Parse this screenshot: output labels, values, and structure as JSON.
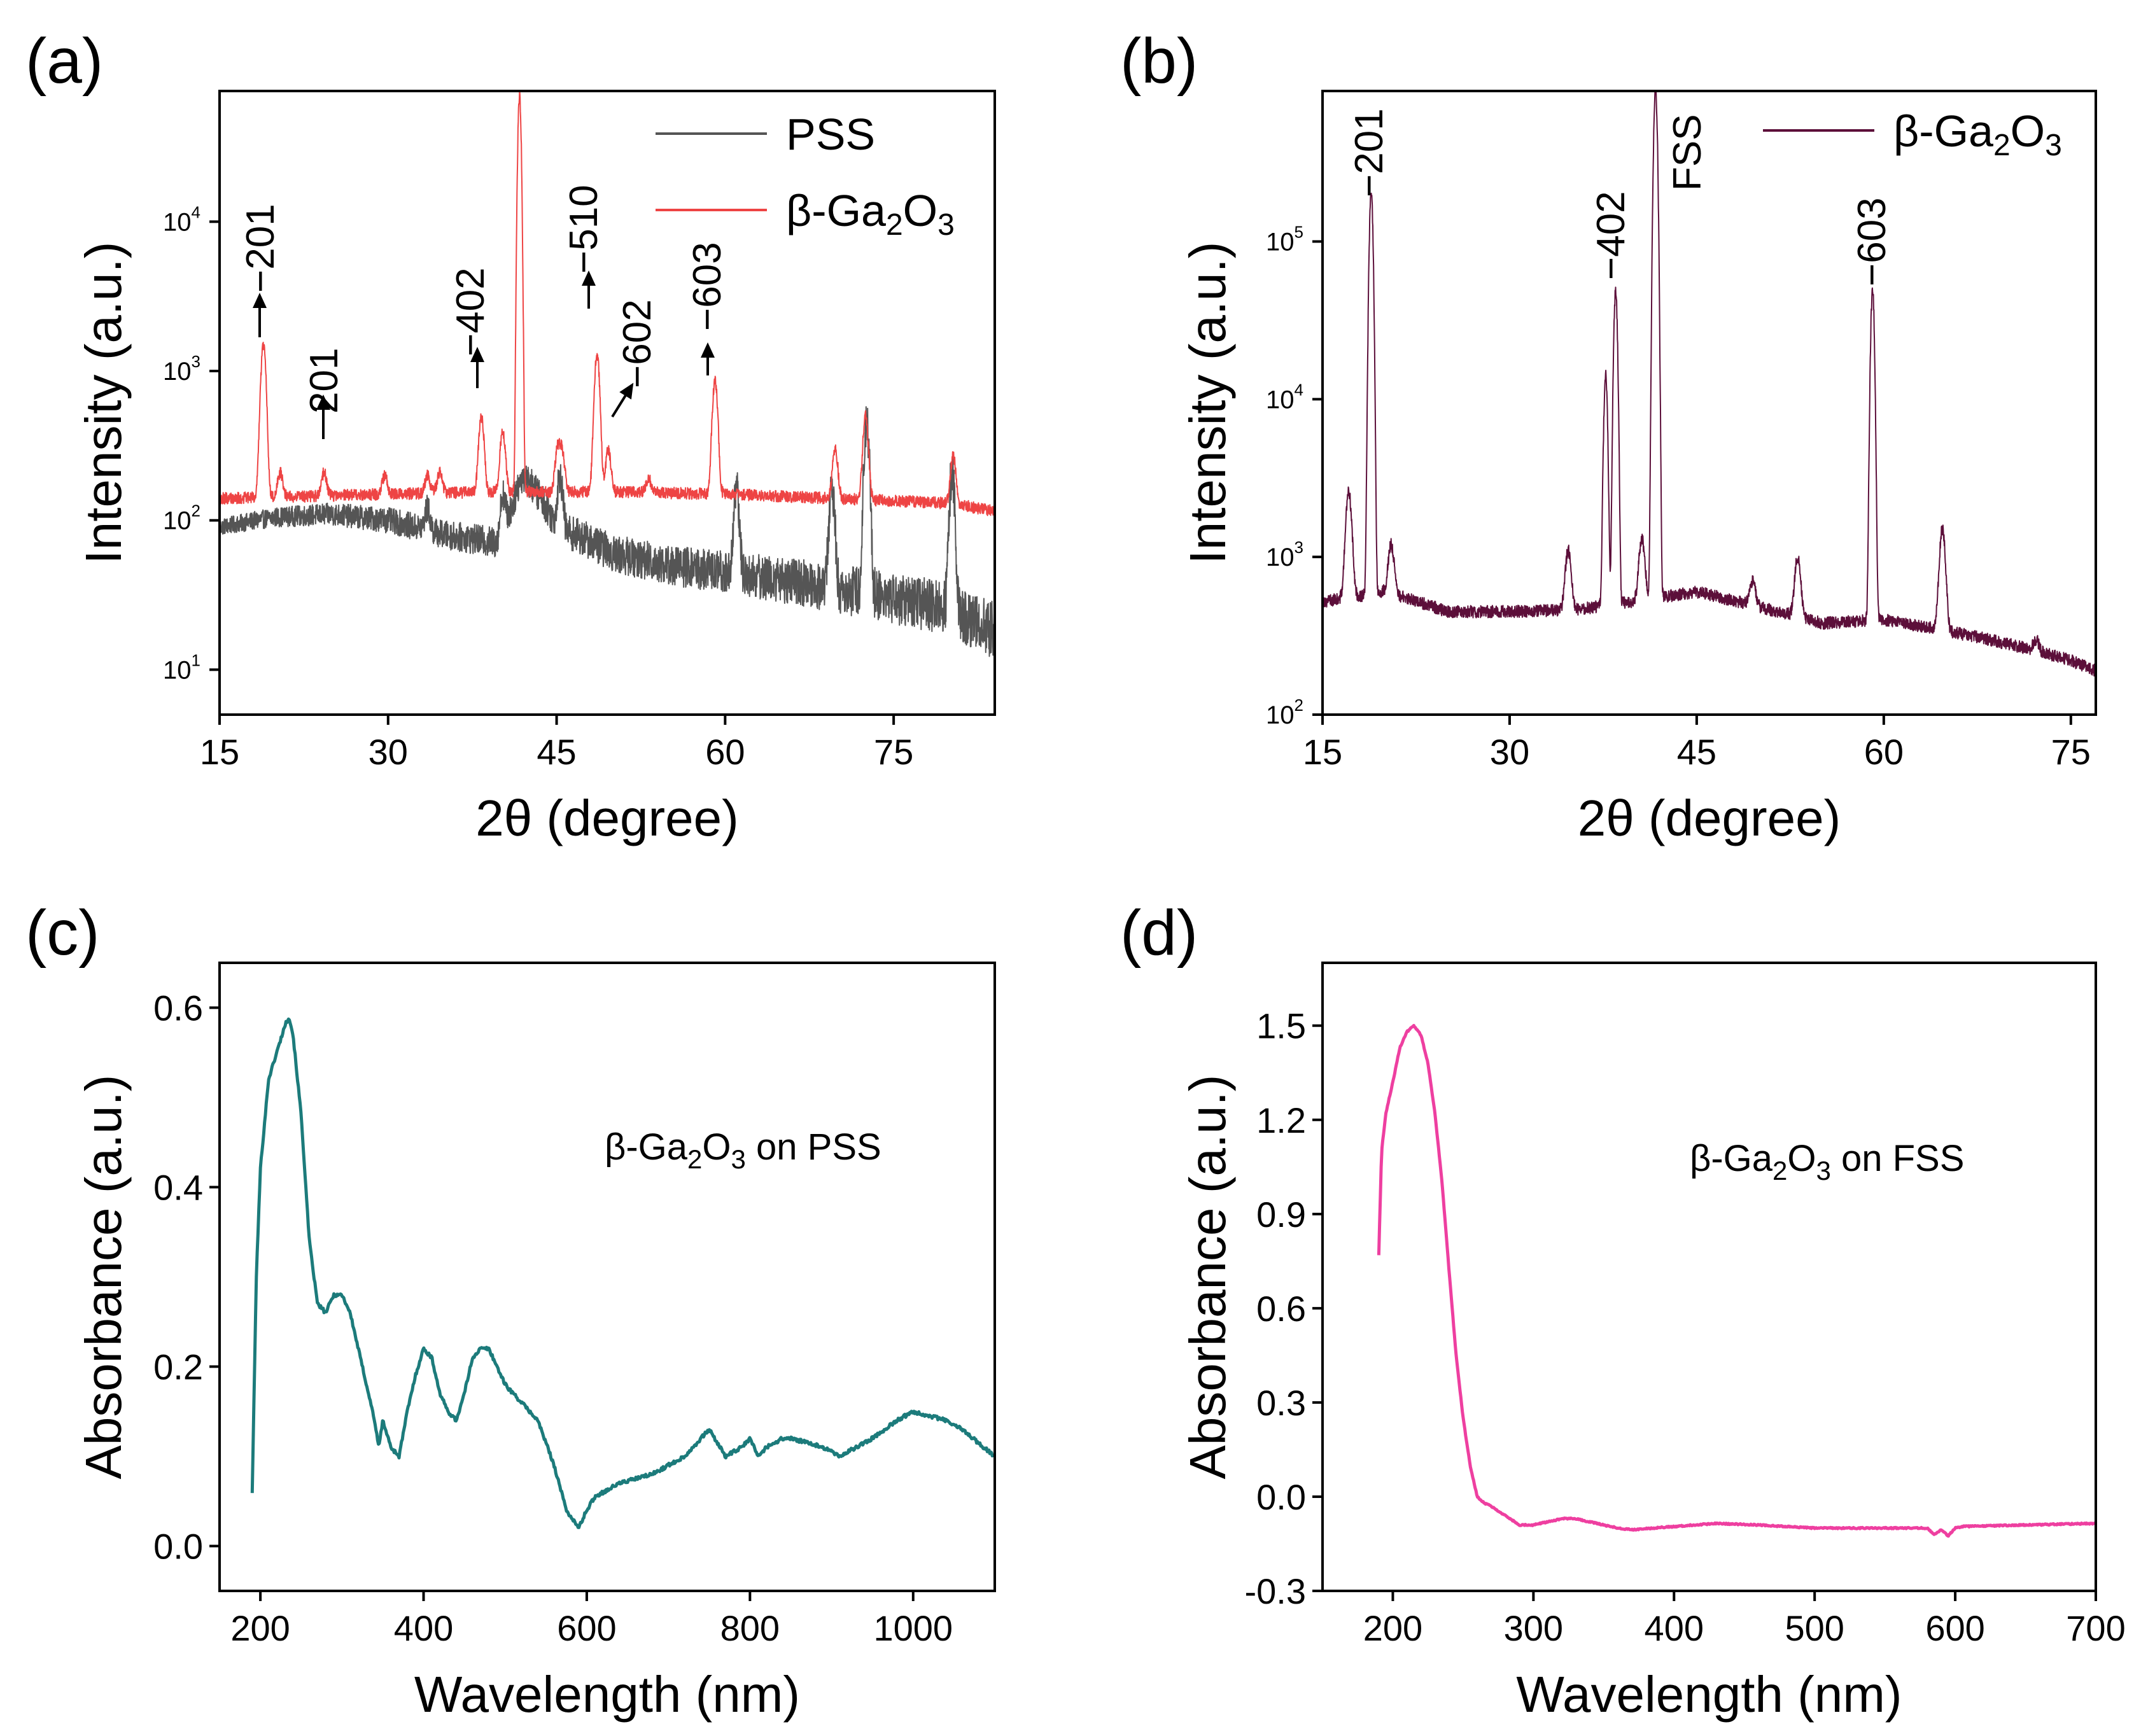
{
  "chart_data": [
    {
      "panel": "(a)",
      "type": "line",
      "title": "",
      "xlabel": "2θ (degree)",
      "ylabel": "Intensity (a.u.)",
      "xlim": [
        15,
        84
      ],
      "ylim": [
        5,
        75000
      ],
      "yscale": "log",
      "xticks": [
        15,
        30,
        45,
        60,
        75
      ],
      "yticks": [
        {
          "base": "10",
          "exp": "1",
          "value": 10
        },
        {
          "base": "10",
          "exp": "2",
          "value": 100
        },
        {
          "base": "10",
          "exp": "3",
          "value": 1000
        },
        {
          "base": "10",
          "exp": "4",
          "value": 10000
        }
      ],
      "legend": {
        "placement": "top-right"
      },
      "series": [
        {
          "name": "PSS",
          "color": "#555555",
          "peaks": [
            [
              33.5,
              120
            ],
            [
              40.2,
              150
            ],
            [
              41.7,
              180
            ],
            [
              45.3,
              200
            ],
            [
              61,
              160
            ],
            [
              69.5,
              170
            ],
            [
              72.6,
              450
            ],
            [
              80.2,
              210
            ]
          ],
          "background": [
            [
              15,
              90
            ],
            [
              20,
              105
            ],
            [
              25,
              110
            ],
            [
              30,
              100
            ],
            [
              35,
              80
            ],
            [
              40,
              70
            ],
            [
              41,
              120
            ],
            [
              42,
              200
            ],
            [
              45,
              90
            ],
            [
              50,
              60
            ],
            [
              55,
              50
            ],
            [
              60,
              45
            ],
            [
              65,
              40
            ],
            [
              70,
              35
            ],
            [
              75,
              30
            ],
            [
              80,
              25
            ],
            [
              84,
              18
            ]
          ]
        },
        {
          "name": "β-Ga",
          "sub1": "2",
          "mid": "O",
          "sub2": "3",
          "color": "#ee4444",
          "peaks": [
            [
              18.9,
              1500
            ],
            [
              20.4,
              210
            ],
            [
              24.3,
              210
            ],
            [
              29.7,
              200
            ],
            [
              33.5,
              200
            ],
            [
              34.6,
              210
            ],
            [
              38.3,
              500
            ],
            [
              40.2,
              400
            ],
            [
              41.7,
              70000
            ],
            [
              45.1,
              300
            ],
            [
              45.5,
              280
            ],
            [
              48.6,
              1300
            ],
            [
              49.6,
              300
            ],
            [
              53.2,
              190
            ],
            [
              59.1,
              850
            ],
            [
              69.8,
              300
            ],
            [
              72.5,
              500
            ],
            [
              80.3,
              270
            ]
          ],
          "background": [
            [
              15,
              140
            ],
            [
              30,
              150
            ],
            [
              40,
              155
            ],
            [
              50,
              155
            ],
            [
              60,
              150
            ],
            [
              70,
              140
            ],
            [
              80,
              130
            ],
            [
              84,
              115
            ]
          ]
        }
      ],
      "annotations": [
        {
          "label": "−201",
          "x": 18.9
        },
        {
          "label": "201",
          "x": 24.3
        },
        {
          "label": "−402",
          "x": 38.3
        },
        {
          "label": "−510",
          "x": 48.6
        },
        {
          "label": "−602",
          "x": 49.6
        },
        {
          "label": "−603",
          "x": 59.1
        }
      ]
    },
    {
      "panel": "(b)",
      "type": "line",
      "title": "",
      "xlabel": "2θ (degree)",
      "ylabel": "Intensity (a.u.)",
      "xlim": [
        15,
        77
      ],
      "ylim": [
        100,
        900000
      ],
      "yscale": "log",
      "xticks": [
        15,
        30,
        45,
        60,
        75
      ],
      "yticks": [
        {
          "base": "10",
          "exp": "2",
          "value": 100
        },
        {
          "base": "10",
          "exp": "3",
          "value": 1000
        },
        {
          "base": "10",
          "exp": "4",
          "value": 10000
        },
        {
          "base": "10",
          "exp": "5",
          "value": 100000
        }
      ],
      "legend": {
        "placement": "top-right"
      },
      "series": [
        {
          "name": "β-Ga",
          "sub1": "2",
          "mid": "O",
          "sub2": "3",
          "color": "#5c0f3a",
          "peaks": [
            [
              17.1,
              2600
            ],
            [
              18.9,
              200000
            ],
            [
              20.5,
              1200
            ],
            [
              34.7,
              1100
            ],
            [
              37.7,
              14000
            ],
            [
              38.5,
              48000
            ],
            [
              40.6,
              1300
            ],
            [
              41.7,
              900000
            ],
            [
              49.5,
              700
            ],
            [
              53.1,
              1000
            ],
            [
              59.1,
              48000
            ],
            [
              64.7,
              1500
            ],
            [
              72.2,
              300
            ]
          ],
          "background": [
            [
              15,
              520
            ],
            [
              20,
              600
            ],
            [
              25,
              450
            ],
            [
              30,
              450
            ],
            [
              35,
              460
            ],
            [
              40,
              520
            ],
            [
              45,
              600
            ],
            [
              50,
              480
            ],
            [
              55,
              380
            ],
            [
              60,
              400
            ],
            [
              65,
              340
            ],
            [
              70,
              280
            ],
            [
              75,
              220
            ],
            [
              77,
              190
            ]
          ]
        }
      ],
      "annotations": [
        {
          "label": "−201",
          "x": 18.9
        },
        {
          "label": "−402",
          "x": 38.5
        },
        {
          "label": "FSS",
          "x": 41.7
        },
        {
          "label": "−603",
          "x": 59.1
        }
      ]
    },
    {
      "panel": "(c)",
      "type": "line",
      "title": "",
      "xlabel": "Wavelength (nm)",
      "ylabel": "Absorbance (a.u.)",
      "xlim": [
        150,
        1100
      ],
      "ylim": [
        -0.05,
        0.65
      ],
      "xticks": [
        200,
        400,
        600,
        800,
        1000
      ],
      "yticks": [
        0.0,
        0.2,
        0.4,
        0.6
      ],
      "ytick_labels": [
        "0.0",
        "0.2",
        "0.4",
        "0.6"
      ],
      "annotation_text": {
        "pre": "β-Ga",
        "sub1": "2",
        "mid": "O",
        "sub2": "3",
        "post": " on PSS"
      },
      "series": [
        {
          "name": "β-Ga2O3 on PSS",
          "color": "#1c7b7b",
          "x": [
            190,
            195,
            200,
            210,
            220,
            230,
            235,
            240,
            250,
            260,
            270,
            280,
            290,
            300,
            310,
            320,
            330,
            340,
            345,
            350,
            360,
            370,
            380,
            390,
            400,
            410,
            420,
            430,
            440,
            450,
            460,
            470,
            480,
            490,
            500,
            520,
            540,
            560,
            575,
            590,
            600,
            610,
            620,
            640,
            660,
            680,
            700,
            720,
            740,
            750,
            770,
            790,
            800,
            810,
            820,
            840,
            850,
            870,
            890,
            910,
            930,
            950,
            980,
            1000,
            1020,
            1040,
            1060,
            1080,
            1100
          ],
          "y": [
            0.06,
            0.3,
            0.42,
            0.52,
            0.55,
            0.58,
            0.59,
            0.57,
            0.48,
            0.34,
            0.27,
            0.26,
            0.28,
            0.28,
            0.26,
            0.22,
            0.18,
            0.14,
            0.11,
            0.14,
            0.11,
            0.1,
            0.15,
            0.19,
            0.22,
            0.21,
            0.17,
            0.15,
            0.14,
            0.17,
            0.21,
            0.22,
            0.22,
            0.2,
            0.18,
            0.16,
            0.14,
            0.09,
            0.04,
            0.02,
            0.04,
            0.055,
            0.06,
            0.07,
            0.075,
            0.08,
            0.09,
            0.1,
            0.12,
            0.13,
            0.1,
            0.11,
            0.12,
            0.1,
            0.11,
            0.12,
            0.12,
            0.115,
            0.11,
            0.1,
            0.11,
            0.12,
            0.14,
            0.15,
            0.145,
            0.14,
            0.13,
            0.115,
            0.1
          ]
        }
      ]
    },
    {
      "panel": "(d)",
      "type": "line",
      "title": "",
      "xlabel": "Wavelength (nm)",
      "ylabel": "Absorbance (a.u.)",
      "xlim": [
        150,
        700
      ],
      "ylim": [
        -0.3,
        1.7
      ],
      "xticks": [
        200,
        300,
        400,
        500,
        600,
        700
      ],
      "yticks": [
        -0.3,
        0.0,
        0.3,
        0.6,
        0.9,
        1.2,
        1.5
      ],
      "ytick_labels": [
        "-0.3",
        "0.0",
        "0.3",
        "0.6",
        "0.9",
        "1.2",
        "1.5"
      ],
      "annotation_text": {
        "pre": "β-Ga",
        "sub1": "2",
        "mid": "O",
        "sub2": "3",
        "post": " on FSS"
      },
      "series": [
        {
          "name": "β-Ga2O3 on FSS",
          "color": "#ee3fa0",
          "x": [
            190,
            192,
            195,
            200,
            205,
            210,
            215,
            220,
            225,
            230,
            235,
            240,
            245,
            250,
            255,
            260,
            265,
            270,
            280,
            290,
            300,
            310,
            320,
            330,
            340,
            350,
            360,
            370,
            400,
            430,
            460,
            500,
            540,
            580,
            585,
            590,
            595,
            600,
            605,
            650,
            700
          ],
          "y": [
            0.77,
            1.1,
            1.22,
            1.32,
            1.43,
            1.48,
            1.5,
            1.47,
            1.38,
            1.22,
            1.0,
            0.72,
            0.45,
            0.25,
            0.1,
            0.0,
            -0.02,
            -0.03,
            -0.06,
            -0.09,
            -0.09,
            -0.08,
            -0.07,
            -0.07,
            -0.08,
            -0.09,
            -0.1,
            -0.105,
            -0.095,
            -0.085,
            -0.09,
            -0.1,
            -0.1,
            -0.1,
            -0.12,
            -0.105,
            -0.125,
            -0.1,
            -0.095,
            -0.09,
            -0.085
          ]
        }
      ]
    }
  ]
}
